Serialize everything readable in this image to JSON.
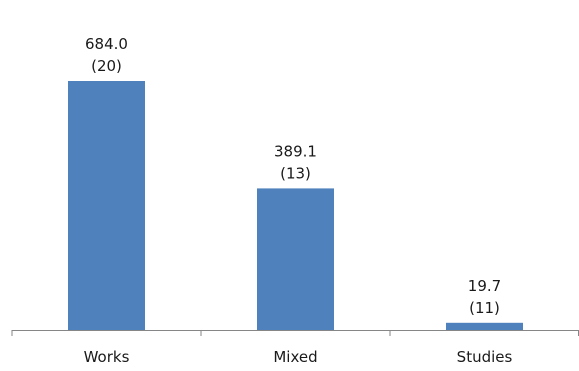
{
  "chart_data": {
    "type": "bar",
    "categories": [
      "Works",
      "Mixed",
      "Studies"
    ],
    "values": [
      684.0,
      389.1,
      19.7
    ],
    "counts": [
      "(20)",
      "(13)",
      "(11)"
    ],
    "value_labels": [
      "684.0",
      "389.1",
      "19.7"
    ],
    "title": "",
    "xlabel": "",
    "ylabel": "",
    "ylim": [
      0,
      684.0
    ],
    "grid": false,
    "legend": "none",
    "bar_color": "#4F81BD",
    "axis_color": "#868686"
  }
}
